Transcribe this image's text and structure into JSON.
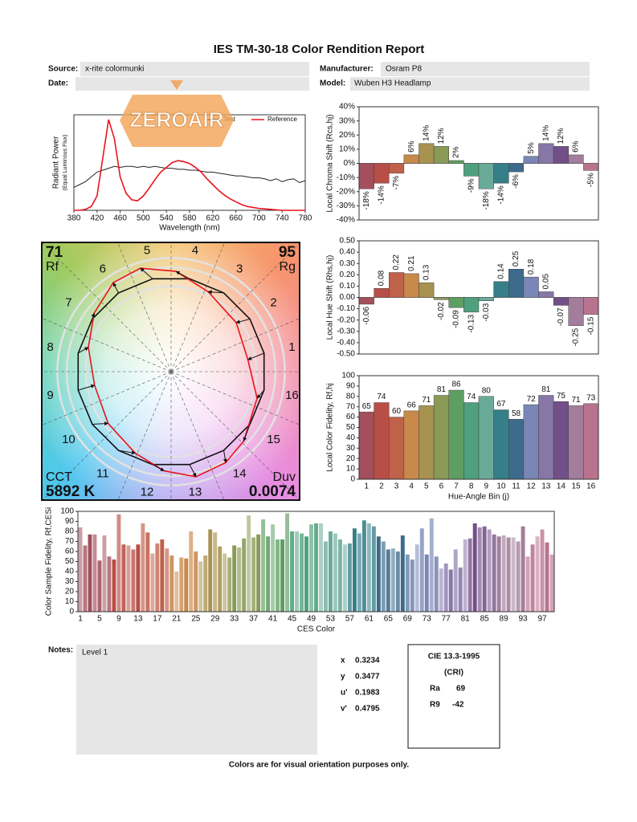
{
  "title": "IES TM-30-18 Color Rendition Report",
  "fields": [
    {
      "label": "Source:",
      "value": "x-rite colormunki"
    },
    {
      "label": "Manufacturer:",
      "value": "Osram P8"
    },
    {
      "label": "Date:"
    },
    {
      "label": "Model:",
      "value": "Wuben H3 Headlamp"
    }
  ],
  "logo": "ZEROAIR",
  "chart_data": [
    {
      "type": "line",
      "ylabel": "Radiant Power",
      "ylabel_sub": "(Equal Luminous Flux)",
      "xlabel": "Wavelength (nm)",
      "x": [
        380,
        390,
        400,
        410,
        420,
        430,
        440,
        450,
        460,
        470,
        480,
        490,
        500,
        510,
        520,
        530,
        540,
        550,
        560,
        570,
        580,
        590,
        600,
        610,
        620,
        630,
        640,
        650,
        660,
        670,
        680,
        690,
        700,
        710,
        720,
        730,
        740,
        750,
        760,
        770,
        780
      ],
      "xlim": [
        380,
        780
      ],
      "xticks": [
        380,
        420,
        460,
        500,
        540,
        580,
        620,
        660,
        700,
        740,
        780
      ],
      "ylim": [
        0,
        1
      ],
      "legend": "upper right",
      "series": [
        {
          "name": "Test",
          "color": "#222222",
          "values": [
            0.24,
            0.27,
            0.3,
            0.35,
            0.4,
            0.42,
            0.44,
            0.46,
            0.45,
            0.46,
            0.46,
            0.45,
            0.46,
            0.45,
            0.46,
            0.45,
            0.44,
            0.44,
            0.43,
            0.43,
            0.42,
            0.42,
            0.41,
            0.4,
            0.4,
            0.39,
            0.38,
            0.37,
            0.36,
            0.36,
            0.35,
            0.34,
            0.34,
            0.33,
            0.31,
            0.33,
            0.3,
            0.32,
            0.33,
            0.29,
            0.31
          ]
        },
        {
          "name": "Reference",
          "color": "#e8141c",
          "values": [
            0,
            0,
            0.01,
            0.04,
            0.15,
            0.55,
            0.95,
            0.75,
            0.35,
            0.18,
            0.11,
            0.1,
            0.15,
            0.23,
            0.32,
            0.4,
            0.45,
            0.5,
            0.52,
            0.51,
            0.49,
            0.45,
            0.4,
            0.33,
            0.27,
            0.21,
            0.16,
            0.12,
            0.09,
            0.06,
            0.04,
            0.03,
            0.02,
            0.015,
            0.01,
            0.005,
            0,
            0,
            0,
            0,
            0
          ]
        }
      ]
    },
    {
      "type": "bar",
      "ylabel": "Local Chroma Shift (Rcs,hj)",
      "values": [
        -18,
        -14,
        -7,
        6,
        14,
        12,
        2,
        -9,
        -18,
        -14,
        -6,
        5,
        14,
        12,
        6,
        -5
      ],
      "value_labels": [
        "-18%",
        "-14%",
        "-7%",
        "6%",
        "14%",
        "12%",
        "2%",
        "-9%",
        "-18%",
        "-14%",
        "-6%",
        "5%",
        "14%",
        "12%",
        "6%",
        "-5%"
      ],
      "value_label_orientation": "vertical",
      "colors": [
        "#a34f5c",
        "#b84e45",
        "#c0614a",
        "#c8894a",
        "#a89250",
        "#8a9a56",
        "#5f9e62",
        "#4ea17c",
        "#6aaa98",
        "#367e88",
        "#3d6b8c",
        "#7a86b5",
        "#8677a8",
        "#734f89",
        "#a37d9c",
        "#b9738f"
      ],
      "ylim": [
        -40,
        40
      ],
      "yticks": [
        {
          "value": -40,
          "label": "-40%"
        },
        {
          "value": -30,
          "label": "-30%"
        },
        {
          "value": -20,
          "label": "-20%"
        },
        {
          "value": -10,
          "label": "-10%"
        },
        {
          "value": 0,
          "label": "0%"
        },
        {
          "value": 10,
          "label": "10%"
        },
        {
          "value": 20,
          "label": "20%"
        },
        {
          "value": 30,
          "label": "30%"
        },
        {
          "value": 40,
          "label": "40%"
        }
      ]
    },
    {
      "type": "bar",
      "ylabel": "Local Hue Shift (Rhs,hj)",
      "values": [
        -0.06,
        0.08,
        0.22,
        0.21,
        0.13,
        -0.02,
        -0.09,
        -0.13,
        -0.03,
        0.14,
        0.25,
        0.18,
        0.05,
        -0.07,
        -0.25,
        -0.15
      ],
      "show_values": true,
      "value_label_orientation": "vertical",
      "colors": [
        "#a34f5c",
        "#b84e45",
        "#c0614a",
        "#c8894a",
        "#a89250",
        "#8a9a56",
        "#5f9e62",
        "#4ea17c",
        "#6aaa98",
        "#367e88",
        "#3d6b8c",
        "#7a86b5",
        "#8677a8",
        "#734f89",
        "#a37d9c",
        "#b9738f"
      ],
      "ylim": [
        -0.5,
        0.5
      ],
      "yticks": [
        {
          "value": -0.5,
          "label": "-0.50"
        },
        {
          "value": -0.4,
          "label": "-0.40"
        },
        {
          "value": -0.3,
          "label": "-0.30"
        },
        {
          "value": -0.2,
          "label": "-0.20"
        },
        {
          "value": -0.1,
          "label": "-0.10"
        },
        {
          "value": 0,
          "label": "0.00"
        },
        {
          "value": 0.1,
          "label": "0.10"
        },
        {
          "value": 0.2,
          "label": "0.20"
        },
        {
          "value": 0.3,
          "label": "0.30"
        },
        {
          "value": 0.4,
          "label": "0.40"
        },
        {
          "value": 0.5,
          "label": "0.50"
        }
      ]
    },
    {
      "type": "bar",
      "ylabel": "Local Color Fidelity, Rf,hj",
      "xlabel": "Hue-Angle Bin (j)",
      "categories": [
        1,
        2,
        3,
        4,
        5,
        6,
        7,
        8,
        9,
        10,
        11,
        12,
        13,
        14,
        15,
        16
      ],
      "values": [
        65,
        74,
        60,
        66,
        71,
        81,
        86,
        74,
        80,
        67,
        58,
        72,
        81,
        75,
        71,
        73
      ],
      "show_values": true,
      "value_label_orientation": "horizontal",
      "colors": [
        "#a34f5c",
        "#b84e45",
        "#c0614a",
        "#c8894a",
        "#a89250",
        "#8a9a56",
        "#5f9e62",
        "#4ea17c",
        "#6aaa98",
        "#367e88",
        "#3d6b8c",
        "#7a86b5",
        "#8677a8",
        "#734f89",
        "#a37d9c",
        "#b9738f"
      ],
      "ylim": [
        0,
        100
      ],
      "yticks": [
        0,
        10,
        20,
        30,
        40,
        50,
        60,
        70,
        80,
        90,
        100
      ]
    },
    {
      "type": "bar",
      "ylabel": "Color Sample Fidelity, Rf,CESi",
      "xlabel": "CES Color",
      "categories": [
        1,
        null,
        null,
        null,
        5,
        null,
        null,
        null,
        9,
        null,
        null,
        null,
        13,
        null,
        null,
        null,
        17,
        null,
        null,
        null,
        21,
        null,
        null,
        null,
        25,
        null,
        null,
        null,
        29,
        null,
        null,
        null,
        33,
        null,
        null,
        null,
        37,
        null,
        null,
        null,
        41,
        null,
        null,
        null,
        45,
        null,
        null,
        null,
        49,
        null,
        null,
        null,
        53,
        null,
        null,
        null,
        57,
        null,
        null,
        null,
        61,
        null,
        null,
        null,
        65,
        null,
        null,
        null,
        69,
        null,
        null,
        null,
        73,
        null,
        null,
        null,
        77,
        null,
        null,
        null,
        81,
        null,
        null,
        null,
        85,
        null,
        null,
        null,
        89,
        null,
        null,
        null,
        93,
        null,
        null,
        null,
        97,
        null,
        null
      ],
      "values": [
        84,
        66,
        77,
        77,
        51,
        76,
        55,
        52,
        97,
        67,
        66,
        62,
        67,
        88,
        79,
        58,
        68,
        72,
        63,
        56,
        40,
        54,
        53,
        80,
        60,
        50,
        56,
        82,
        79,
        65,
        58,
        54,
        66,
        64,
        73,
        96,
        74,
        77,
        92,
        75,
        87,
        72,
        72,
        98,
        80,
        80,
        78,
        75,
        87,
        88,
        88,
        70,
        80,
        78,
        72,
        67,
        68,
        83,
        78,
        91,
        88,
        85,
        75,
        70,
        62,
        63,
        60,
        76,
        57,
        52,
        67,
        83,
        57,
        93,
        55,
        43,
        48,
        42,
        62,
        44,
        72,
        73,
        88,
        84,
        85,
        82,
        77,
        75,
        76,
        74,
        74,
        70,
        85,
        55,
        67,
        75,
        82,
        69,
        57
      ],
      "colors": [
        "#a34f5c",
        "#b84e45",
        "#c0614a",
        "#c8894a",
        "#a89250",
        "#8a9a56",
        "#5f9e62",
        "#4ea17c",
        "#6aaa98",
        "#367e88",
        "#3d6b8c",
        "#7a86b5",
        "#8677a8",
        "#734f89",
        "#a37d9c",
        "#b9738f"
      ],
      "ylim": [
        0,
        100
      ],
      "yticks": [
        0,
        10,
        20,
        30,
        40,
        50,
        60,
        70,
        80,
        90,
        100
      ]
    },
    {
      "type": "vector",
      "categories": [
        1,
        2,
        3,
        4,
        5,
        6,
        7,
        8,
        9,
        10,
        11,
        12,
        13,
        14,
        15,
        16
      ],
      "reference_r": [
        1,
        1,
        1,
        1,
        1,
        1,
        1,
        1,
        1,
        1,
        1,
        1,
        1,
        1,
        1,
        1
      ],
      "test_r": [
        0.82,
        0.86,
        0.93,
        1.06,
        1.14,
        1.12,
        1.02,
        0.91,
        0.82,
        0.86,
        0.94,
        1.05,
        1.14,
        1.12,
        1.06,
        0.95
      ],
      "test_angle": [
        8.9,
        37,
        65.1,
        87.2,
        106.5,
        123,
        142.7,
        163.6,
        190.1,
        219.4,
        246.3,
        266,
        283.3,
        301,
        316.3,
        342.8
      ],
      "reference_color": "#111111",
      "test_color": "#e8141c",
      "rf_label": "Rf",
      "rf": 71,
      "rg_label": "Rg",
      "rg": 95,
      "cct_label": "CCT",
      "cct": "5892 K",
      "duv_label": "Duv",
      "duv": 0.0074
    }
  ],
  "notes": {
    "label": "Notes:",
    "text": "Level 1"
  },
  "colorimetry": [
    {
      "label": "x",
      "value": 0.3234
    },
    {
      "label": "y",
      "value": 0.3477
    },
    {
      "label": "u'",
      "value": 0.1983
    },
    {
      "label": "v'",
      "value": 0.4795
    }
  ],
  "cri": {
    "title": "CIE 13.3-1995",
    "subtitle": "(CRI)",
    "items": [
      {
        "label": "Ra",
        "value": 69
      },
      {
        "label": "R9",
        "value": -42
      }
    ]
  },
  "footer": "Colors are for visual orientation purposes only."
}
